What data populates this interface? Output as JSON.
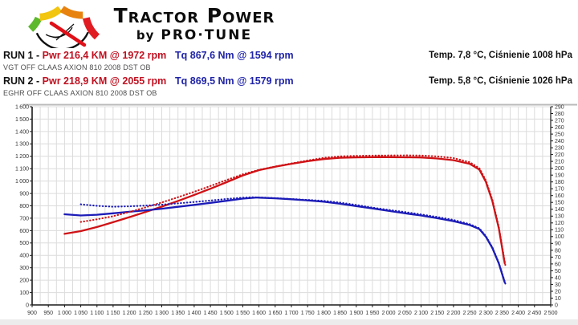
{
  "header": {
    "title_line1": "Tractor Power",
    "title_line2_prefix": "by",
    "title_line2": "PRO·TUNE"
  },
  "runs": [
    {
      "label": "RUN 1 -",
      "power_label": "Pwr 216,4 KM @ 1972 rpm",
      "torque_label": "Tq 867,6 Nm @ 1594 rpm",
      "description": "VGT OFF CLAAS AXION 810 2008 DST OB",
      "conditions": "Temp. 7,8 °C, Ciśnienie 1008 hPa"
    },
    {
      "label": "RUN 2 -",
      "power_label": "Pwr 218,9 KM @ 2055 rpm",
      "torque_label": "Tq 869,5 Nm @ 1579 rpm",
      "description": "EGHR OFF CLAAS AXION 810 2008 DST OB",
      "conditions": "Temp. 5,8 °C, Ciśnienie 1026 hPa"
    }
  ],
  "colors": {
    "power_text": "#c01020",
    "torque_text": "#1f23a8",
    "power_line": "#cf1216",
    "torque_line": "#1c1cb8",
    "grid": "#dcdcdc",
    "axis": "#1a1a1a",
    "tick_label": "#333333",
    "top_border": "#b9b9b9",
    "logo_green": "#5db82d",
    "logo_yellow": "#f2c50f",
    "logo_orange": "#e8820e",
    "logo_red": "#e11b22",
    "logo_black": "#111111"
  },
  "chart_data": {
    "type": "line",
    "grid": true,
    "legend": "none",
    "x_axis": {
      "min": 900,
      "max": 2500,
      "tick_step": 50,
      "grid_step": 25
    },
    "left_axis": {
      "min": 0,
      "max": 1600,
      "tick_step": 100
    },
    "right_axis": {
      "min": 0,
      "max": 290,
      "tick_step": 10
    },
    "series": [
      {
        "name": "run1-power-km",
        "axis": "right",
        "line": "solid",
        "color_key": "power_line",
        "points": [
          [
            1000,
            104
          ],
          [
            1050,
            108
          ],
          [
            1100,
            114
          ],
          [
            1150,
            121
          ],
          [
            1200,
            128.5
          ],
          [
            1250,
            136
          ],
          [
            1300,
            143.8
          ],
          [
            1350,
            152.2
          ],
          [
            1400,
            161
          ],
          [
            1450,
            170
          ],
          [
            1500,
            179.6
          ],
          [
            1550,
            189.4
          ],
          [
            1600,
            197.3
          ],
          [
            1650,
            202.3
          ],
          [
            1700,
            206.5
          ],
          [
            1750,
            210.3
          ],
          [
            1800,
            213.5
          ],
          [
            1850,
            215.3
          ],
          [
            1900,
            215.9
          ],
          [
            1950,
            216.2
          ],
          [
            1972,
            216.4
          ],
          [
            2000,
            216.3
          ],
          [
            2050,
            216
          ],
          [
            2100,
            215.8
          ],
          [
            2150,
            214.3
          ],
          [
            2200,
            211.8
          ],
          [
            2250,
            206.5
          ],
          [
            2280,
            198
          ],
          [
            2300,
            180
          ],
          [
            2320,
            152
          ],
          [
            2340,
            112
          ],
          [
            2358,
            61
          ]
        ]
      },
      {
        "name": "run2-power-km",
        "axis": "right",
        "line": "dotted",
        "color_key": "power_line",
        "points": [
          [
            1050,
            121.4
          ],
          [
            1100,
            125.3
          ],
          [
            1150,
            129.9
          ],
          [
            1200,
            136
          ],
          [
            1250,
            142.8
          ],
          [
            1300,
            149.9
          ],
          [
            1350,
            157.6
          ],
          [
            1400,
            165.6
          ],
          [
            1450,
            174
          ],
          [
            1500,
            182.8
          ],
          [
            1550,
            191.1
          ],
          [
            1600,
            197.7
          ],
          [
            1650,
            202.5
          ],
          [
            1700,
            207
          ],
          [
            1750,
            211.3
          ],
          [
            1800,
            215.2
          ],
          [
            1850,
            217.5
          ],
          [
            1900,
            218.2
          ],
          [
            1950,
            218.5
          ],
          [
            2000,
            218.7
          ],
          [
            2055,
            218.9
          ],
          [
            2100,
            218.6
          ],
          [
            2150,
            217.3
          ],
          [
            2200,
            214.9
          ],
          [
            2250,
            208.9
          ],
          [
            2280,
            200
          ],
          [
            2300,
            182
          ],
          [
            2320,
            154
          ],
          [
            2340,
            114
          ],
          [
            2360,
            58
          ]
        ]
      },
      {
        "name": "run1-torque-nm",
        "axis": "left",
        "line": "solid",
        "color_key": "torque_line",
        "points": [
          [
            1000,
            732
          ],
          [
            1050,
            722
          ],
          [
            1100,
            728
          ],
          [
            1150,
            740
          ],
          [
            1200,
            752
          ],
          [
            1250,
            764
          ],
          [
            1300,
            777
          ],
          [
            1350,
            792
          ],
          [
            1400,
            808
          ],
          [
            1450,
            824
          ],
          [
            1500,
            841
          ],
          [
            1550,
            858
          ],
          [
            1594,
            867.6
          ],
          [
            1600,
            866
          ],
          [
            1650,
            861
          ],
          [
            1700,
            853
          ],
          [
            1750,
            844
          ],
          [
            1800,
            833
          ],
          [
            1850,
            817
          ],
          [
            1900,
            798
          ],
          [
            1950,
            779
          ],
          [
            2000,
            760
          ],
          [
            2050,
            740
          ],
          [
            2100,
            722
          ],
          [
            2150,
            700
          ],
          [
            2200,
            676
          ],
          [
            2250,
            645
          ],
          [
            2280,
            612
          ],
          [
            2300,
            550
          ],
          [
            2320,
            460
          ],
          [
            2340,
            335
          ],
          [
            2358,
            182
          ]
        ]
      },
      {
        "name": "run2-torque-nm",
        "axis": "left",
        "line": "dotted",
        "color_key": "torque_line",
        "points": [
          [
            1050,
            812
          ],
          [
            1100,
            800
          ],
          [
            1150,
            793
          ],
          [
            1200,
            796
          ],
          [
            1250,
            802
          ],
          [
            1300,
            810
          ],
          [
            1350,
            820
          ],
          [
            1400,
            831
          ],
          [
            1450,
            843
          ],
          [
            1500,
            856
          ],
          [
            1550,
            866
          ],
          [
            1579,
            869.5
          ],
          [
            1600,
            868
          ],
          [
            1650,
            862
          ],
          [
            1700,
            855
          ],
          [
            1750,
            848
          ],
          [
            1800,
            840
          ],
          [
            1850,
            826
          ],
          [
            1900,
            807
          ],
          [
            1950,
            786
          ],
          [
            2000,
            767
          ],
          [
            2050,
            750
          ],
          [
            2100,
            731
          ],
          [
            2150,
            710
          ],
          [
            2200,
            686
          ],
          [
            2250,
            652
          ],
          [
            2280,
            618
          ],
          [
            2300,
            556
          ],
          [
            2320,
            465
          ],
          [
            2340,
            340
          ],
          [
            2360,
            172
          ]
        ]
      }
    ]
  }
}
